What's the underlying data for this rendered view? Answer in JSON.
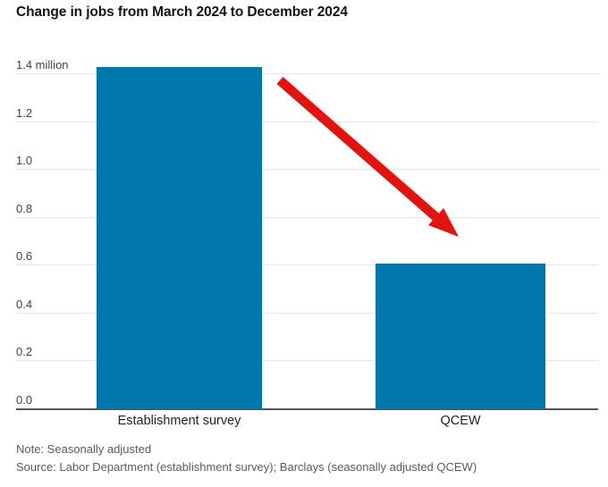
{
  "chart_data": {
    "type": "bar",
    "title": "Change in jobs from March 2024 to December 2024",
    "categories": [
      "Establishment survey",
      "QCEW"
    ],
    "values": [
      1.43,
      0.61
    ],
    "unit": "million jobs",
    "xlabel": "",
    "ylabel": "",
    "ylim": [
      0,
      1.4
    ],
    "grid": true,
    "legend": "none",
    "bar_color": "#0077ad",
    "yticks": [
      {
        "value": 0.0,
        "label": "0.0"
      },
      {
        "value": 0.2,
        "label": "0.2"
      },
      {
        "value": 0.4,
        "label": "0.4"
      },
      {
        "value": 0.6,
        "label": "0.6"
      },
      {
        "value": 0.8,
        "label": "0.8"
      },
      {
        "value": 1.0,
        "label": "1.0"
      },
      {
        "value": 1.2,
        "label": "1.2"
      },
      {
        "value": 1.4,
        "label": "1.4 million"
      }
    ],
    "annotation": {
      "type": "arrow",
      "direction": "down-right",
      "color": "#e31410",
      "meaning": "decline from establishment survey figure to QCEW figure"
    }
  },
  "footer": {
    "note": "Note: Seasonally adjusted",
    "source": "Source: Labor Department (establishment survey); Barclays (seasonally adjusted QCEW)"
  }
}
